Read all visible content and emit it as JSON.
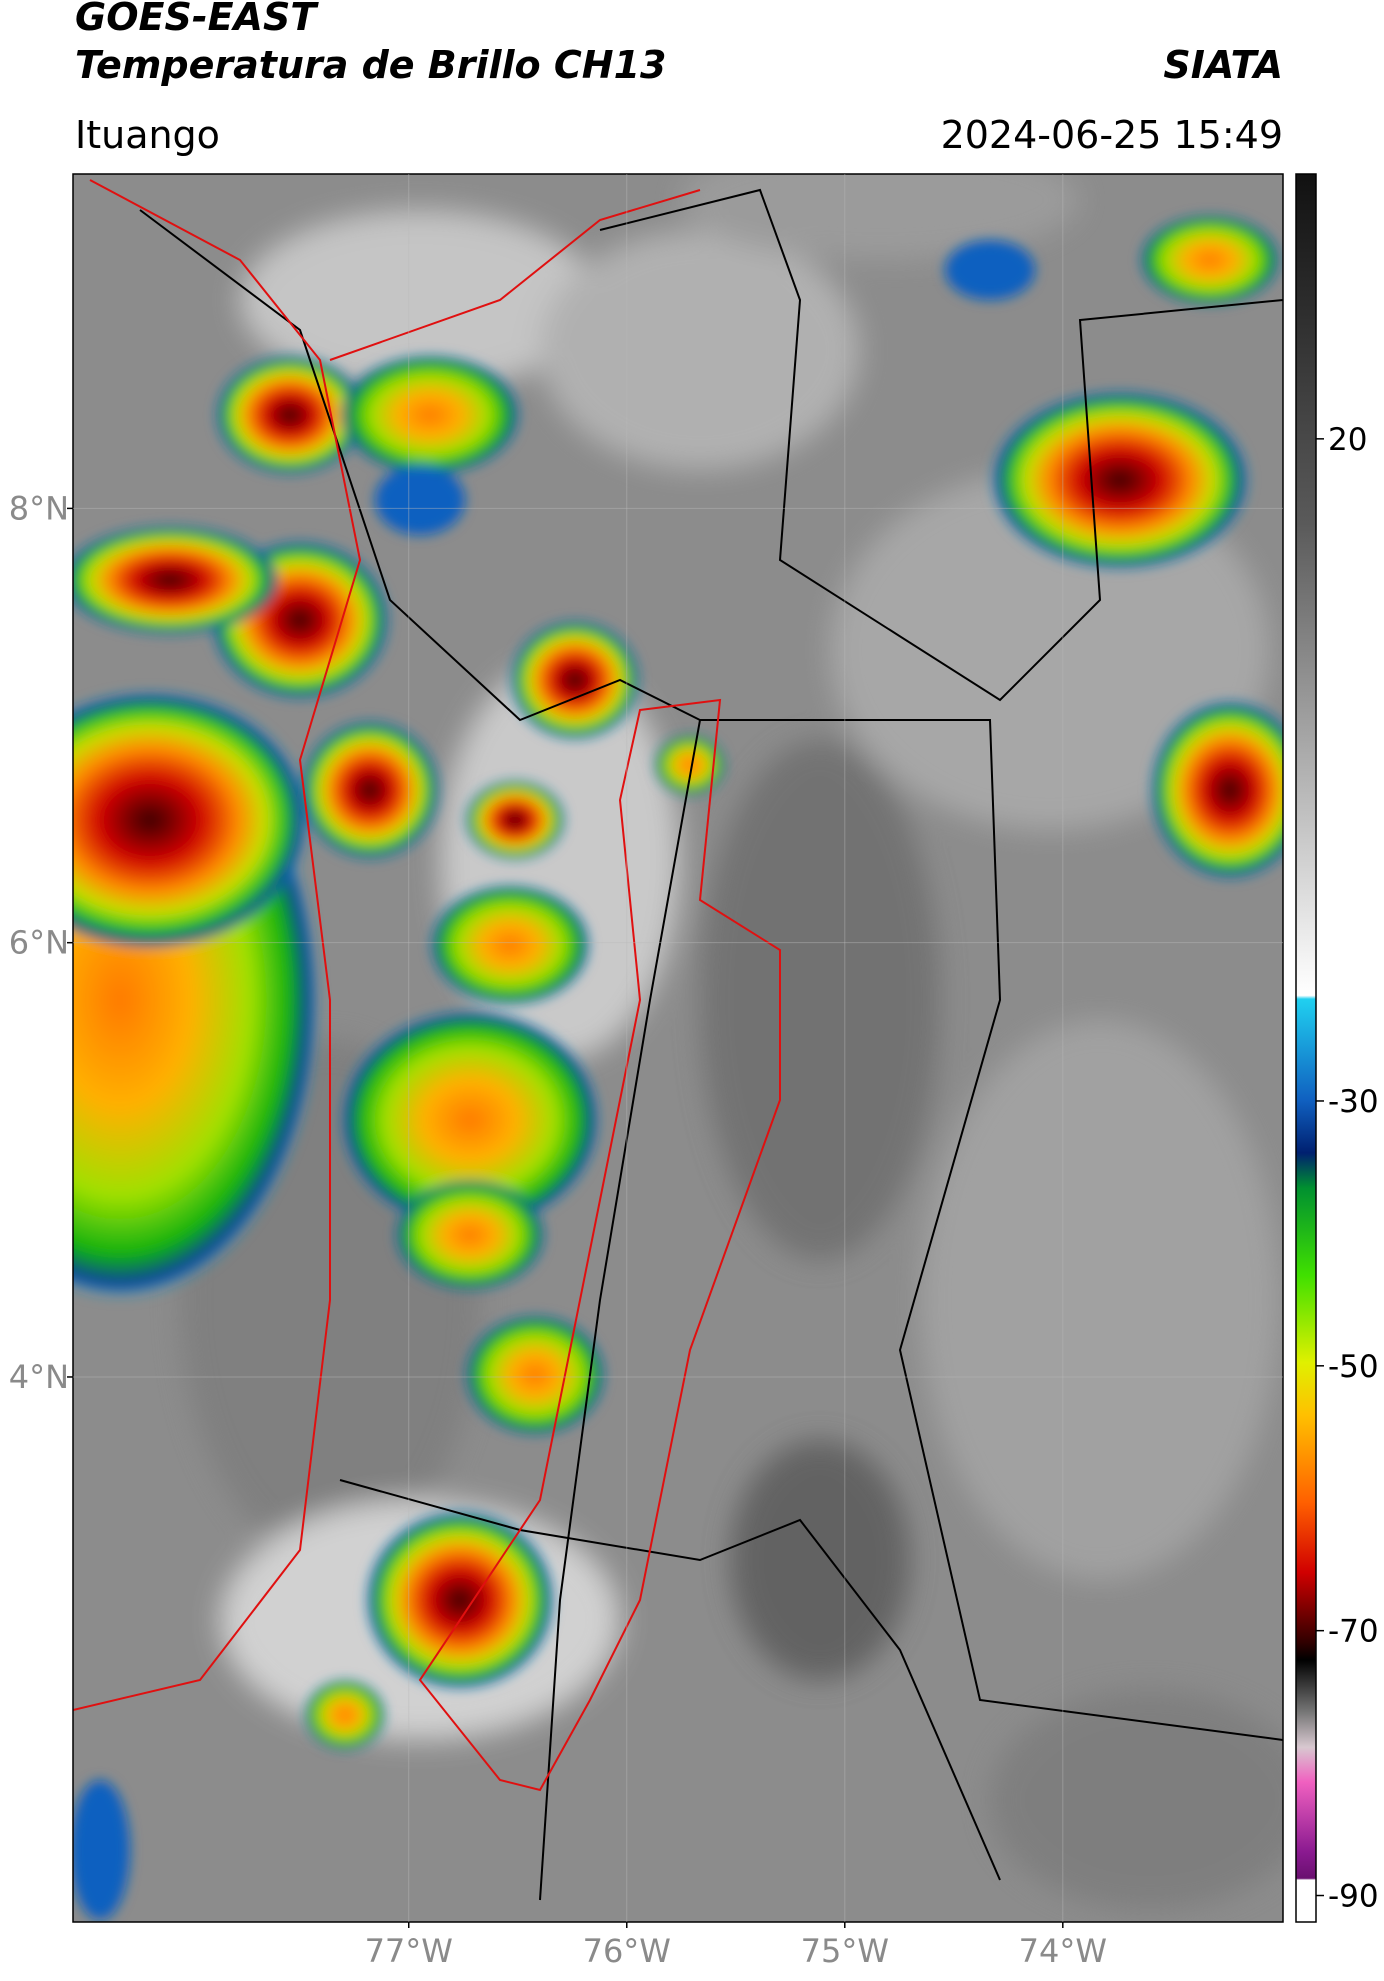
{
  "header": {
    "satellite": "GOES-EAST",
    "product": "Temperatura de Brillo CH13",
    "agency": "SIATA",
    "location": "Ituango",
    "timestamp": "2024-06-25 15:49"
  },
  "map": {
    "lat_range": [
      1.49,
      9.54
    ],
    "lon_range": [
      -78.54,
      -72.99
    ],
    "lat_ticks": [
      {
        "value": 8,
        "label": "8°N"
      },
      {
        "value": 6,
        "label": "6°N"
      },
      {
        "value": 4,
        "label": "4°N"
      }
    ],
    "lon_ticks": [
      {
        "value": -77,
        "label": "77°W"
      },
      {
        "value": -76,
        "label": "76°W"
      },
      {
        "value": -75,
        "label": "75°W"
      },
      {
        "value": -74,
        "label": "74°W"
      }
    ],
    "grid": true
  },
  "colorbar": {
    "range": [
      -92,
      40
    ],
    "ticks": [
      20,
      -30,
      -50,
      -70,
      -90
    ]
  }
}
